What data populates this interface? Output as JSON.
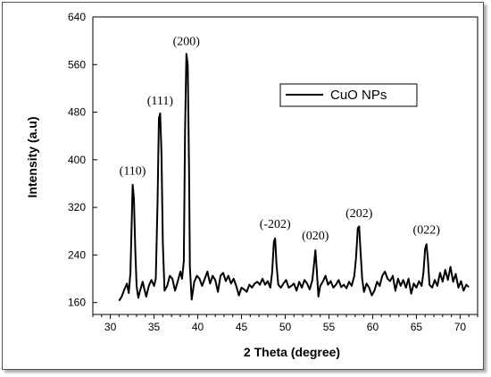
{
  "chart_data": {
    "type": "line",
    "title": "",
    "xlabel": "2 Theta (degree)",
    "ylabel": "Intensity (a.u)",
    "xlim": [
      28,
      72
    ],
    "ylim": [
      140,
      640
    ],
    "x_ticks": [
      30,
      35,
      40,
      45,
      50,
      55,
      60,
      65,
      70
    ],
    "y_ticks": [
      160,
      240,
      320,
      400,
      480,
      560,
      640
    ],
    "legend": "top-right",
    "grid": false,
    "series": [
      {
        "name": "CuO NPs",
        "color": "#000000",
        "points": [
          [
            31.0,
            163
          ],
          [
            31.3,
            170
          ],
          [
            31.6,
            182
          ],
          [
            31.9,
            192
          ],
          [
            32.1,
            176
          ],
          [
            32.3,
            210
          ],
          [
            32.45,
            300
          ],
          [
            32.55,
            358
          ],
          [
            32.7,
            335
          ],
          [
            32.85,
            250
          ],
          [
            33.0,
            188
          ],
          [
            33.2,
            168
          ],
          [
            33.4,
            180
          ],
          [
            33.7,
            195
          ],
          [
            33.9,
            182
          ],
          [
            34.1,
            170
          ],
          [
            34.4,
            188
          ],
          [
            34.7,
            198
          ],
          [
            35.0,
            188
          ],
          [
            35.2,
            200
          ],
          [
            35.4,
            330
          ],
          [
            35.55,
            470
          ],
          [
            35.7,
            478
          ],
          [
            35.85,
            410
          ],
          [
            36.0,
            260
          ],
          [
            36.2,
            180
          ],
          [
            36.5,
            188
          ],
          [
            36.8,
            205
          ],
          [
            37.1,
            200
          ],
          [
            37.4,
            180
          ],
          [
            37.7,
            195
          ],
          [
            38.0,
            212
          ],
          [
            38.2,
            200
          ],
          [
            38.4,
            230
          ],
          [
            38.55,
            450
          ],
          [
            38.7,
            578
          ],
          [
            38.85,
            560
          ],
          [
            39.0,
            380
          ],
          [
            39.1,
            220
          ],
          [
            39.3,
            165
          ],
          [
            39.6,
            195
          ],
          [
            39.9,
            205
          ],
          [
            40.2,
            200
          ],
          [
            40.5,
            188
          ],
          [
            40.8,
            200
          ],
          [
            41.1,
            212
          ],
          [
            41.4,
            192
          ],
          [
            41.7,
            205
          ],
          [
            42.0,
            198
          ],
          [
            42.3,
            178
          ],
          [
            42.6,
            205
          ],
          [
            42.9,
            210
          ],
          [
            43.2,
            196
          ],
          [
            43.5,
            205
          ],
          [
            43.8,
            192
          ],
          [
            44.1,
            200
          ],
          [
            44.4,
            188
          ],
          [
            44.7,
            172
          ],
          [
            45.0,
            185
          ],
          [
            45.3,
            182
          ],
          [
            45.6,
            178
          ],
          [
            45.9,
            190
          ],
          [
            46.2,
            185
          ],
          [
            46.5,
            192
          ],
          [
            46.8,
            195
          ],
          [
            47.1,
            190
          ],
          [
            47.4,
            200
          ],
          [
            47.7,
            190
          ],
          [
            48.0,
            196
          ],
          [
            48.3,
            185
          ],
          [
            48.5,
            210
          ],
          [
            48.7,
            262
          ],
          [
            48.85,
            268
          ],
          [
            49.0,
            225
          ],
          [
            49.2,
            190
          ],
          [
            49.5,
            185
          ],
          [
            49.8,
            192
          ],
          [
            50.1,
            198
          ],
          [
            50.4,
            185
          ],
          [
            50.7,
            188
          ],
          [
            51.0,
            192
          ],
          [
            51.3,
            180
          ],
          [
            51.6,
            195
          ],
          [
            51.9,
            185
          ],
          [
            52.2,
            198
          ],
          [
            52.5,
            192
          ],
          [
            52.8,
            182
          ],
          [
            53.1,
            198
          ],
          [
            53.3,
            225
          ],
          [
            53.45,
            248
          ],
          [
            53.6,
            215
          ],
          [
            53.8,
            170
          ],
          [
            54.0,
            188
          ],
          [
            54.3,
            195
          ],
          [
            54.6,
            205
          ],
          [
            54.9,
            190
          ],
          [
            55.2,
            196
          ],
          [
            55.5,
            185
          ],
          [
            55.8,
            190
          ],
          [
            56.1,
            198
          ],
          [
            56.4,
            186
          ],
          [
            56.7,
            190
          ],
          [
            57.0,
            184
          ],
          [
            57.3,
            195
          ],
          [
            57.6,
            188
          ],
          [
            57.9,
            205
          ],
          [
            58.1,
            235
          ],
          [
            58.3,
            285
          ],
          [
            58.45,
            288
          ],
          [
            58.6,
            250
          ],
          [
            58.8,
            200
          ],
          [
            59.0,
            178
          ],
          [
            59.3,
            192
          ],
          [
            59.6,
            185
          ],
          [
            59.9,
            172
          ],
          [
            60.2,
            180
          ],
          [
            60.5,
            195
          ],
          [
            60.8,
            188
          ],
          [
            61.1,
            205
          ],
          [
            61.4,
            212
          ],
          [
            61.7,
            200
          ],
          [
            62.0,
            196
          ],
          [
            62.3,
            205
          ],
          [
            62.6,
            180
          ],
          [
            62.9,
            200
          ],
          [
            63.2,
            188
          ],
          [
            63.5,
            198
          ],
          [
            63.8,
            185
          ],
          [
            64.1,
            200
          ],
          [
            64.4,
            175
          ],
          [
            64.7,
            192
          ],
          [
            65.0,
            185
          ],
          [
            65.3,
            196
          ],
          [
            65.6,
            188
          ],
          [
            65.8,
            210
          ],
          [
            66.0,
            250
          ],
          [
            66.15,
            258
          ],
          [
            66.3,
            235
          ],
          [
            66.5,
            190
          ],
          [
            66.8,
            185
          ],
          [
            67.1,
            198
          ],
          [
            67.4,
            188
          ],
          [
            67.7,
            210
          ],
          [
            68.0,
            195
          ],
          [
            68.3,
            215
          ],
          [
            68.6,
            198
          ],
          [
            68.9,
            220
          ],
          [
            69.2,
            195
          ],
          [
            69.5,
            208
          ],
          [
            69.8,
            185
          ],
          [
            70.1,
            196
          ],
          [
            70.4,
            180
          ],
          [
            70.7,
            190
          ],
          [
            71.0,
            186
          ]
        ]
      }
    ],
    "annotations": [
      {
        "text": "(110)",
        "x": 32.55,
        "y": 375
      },
      {
        "text": "(111)",
        "x": 35.7,
        "y": 493
      },
      {
        "text": "(200)",
        "x": 38.7,
        "y": 593
      },
      {
        "text": "(-202)",
        "x": 48.85,
        "y": 286
      },
      {
        "text": "(020)",
        "x": 53.45,
        "y": 266
      },
      {
        "text": "(202)",
        "x": 58.45,
        "y": 304
      },
      {
        "text": "(022)",
        "x": 66.15,
        "y": 276
      }
    ]
  }
}
